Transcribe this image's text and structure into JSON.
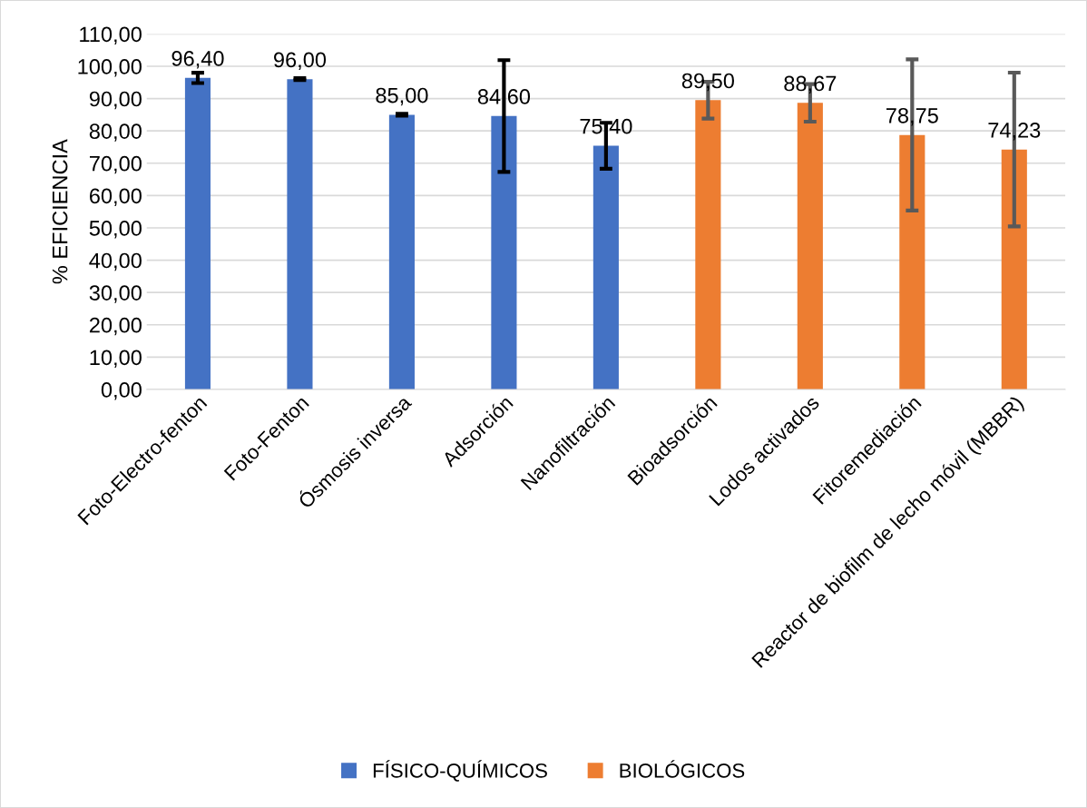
{
  "chart_data": {
    "type": "bar",
    "ylabel": "% EFICIENCIA",
    "categories": [
      "Foto-Electro-fenton",
      "Foto-Fenton",
      "Ósmosis inversa",
      "Adsorción",
      "Nanofiltración",
      "Bioadsorción",
      "Lodos activados",
      "Fitoremediación",
      "Reactor de biofilm de lecho móvil (MBBR)"
    ],
    "series": [
      {
        "name": "FÍSICO-QUÍMICOS",
        "color": "#4472c4",
        "values": [
          96.4,
          96.0,
          85.0,
          84.6,
          75.4,
          null,
          null,
          null,
          null
        ],
        "errors": [
          1.6,
          0.3,
          0.3,
          17.3,
          7.1,
          null,
          null,
          null,
          null
        ],
        "value_labels": [
          "96,40",
          "96,00",
          "85,00",
          "84,60",
          "75,40",
          null,
          null,
          null,
          null
        ]
      },
      {
        "name": "BIOLÓGICOS",
        "color": "#ed7d31",
        "values": [
          null,
          null,
          null,
          null,
          null,
          89.5,
          88.67,
          78.75,
          74.23
        ],
        "errors": [
          null,
          null,
          null,
          null,
          null,
          5.7,
          5.8,
          23.4,
          23.8
        ],
        "value_labels": [
          null,
          null,
          null,
          null,
          null,
          "89,50",
          "88,67",
          "78,75",
          "74,23"
        ]
      }
    ],
    "ylim": [
      0,
      110
    ],
    "yticks": [
      {
        "value": 0,
        "label": "0,00"
      },
      {
        "value": 10,
        "label": "10,00"
      },
      {
        "value": 20,
        "label": "20,00"
      },
      {
        "value": 30,
        "label": "30,00"
      },
      {
        "value": 40,
        "label": "40,00"
      },
      {
        "value": 50,
        "label": "50,00"
      },
      {
        "value": 60,
        "label": "60,00"
      },
      {
        "value": 70,
        "label": "70,00"
      },
      {
        "value": 80,
        "label": "80,00"
      },
      {
        "value": 90,
        "label": "90,00"
      },
      {
        "value": 100,
        "label": "100,00"
      },
      {
        "value": 110,
        "label": "110,00"
      }
    ],
    "grid": "y",
    "legend": "bottom"
  }
}
